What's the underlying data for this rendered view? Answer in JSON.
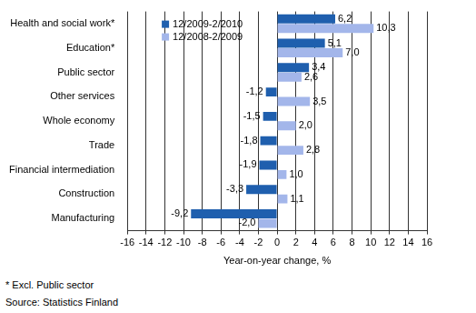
{
  "chart_data": {
    "type": "bar",
    "orientation": "horizontal",
    "categories": [
      "Health and social work*",
      "Education*",
      "Public sector",
      "Other services",
      "Whole economy",
      "Trade",
      "Financial intermediation",
      "Construction",
      "Manufacturing"
    ],
    "series": [
      {
        "name": "12/2009-2/2010",
        "color": "#1f5fae",
        "values": [
          6.2,
          5.1,
          3.4,
          -1.2,
          -1.5,
          -1.8,
          -1.9,
          -3.3,
          -9.2
        ],
        "value_labels": [
          "6,2",
          "5,1",
          "3,4",
          "-1,2",
          "-1,5",
          "-1,8",
          "-1,9",
          "-3,3",
          "-9,2"
        ]
      },
      {
        "name": "12/2008-2/2009",
        "color": "#a3b6ea",
        "values": [
          10.3,
          7.0,
          2.6,
          3.5,
          2.0,
          2.8,
          1.0,
          1.1,
          -2.0
        ],
        "value_labels": [
          "10,3",
          "7,0",
          "2,6",
          "3,5",
          "2,0",
          "2,8",
          "1,0",
          "1,1",
          "-2,0"
        ]
      }
    ],
    "x_label": "Year-on-year change, %",
    "xlim": [
      -16,
      16
    ],
    "xticks": [
      -16,
      -14,
      -12,
      -10,
      -8,
      -6,
      -4,
      -2,
      0,
      2,
      4,
      6,
      8,
      10,
      12,
      14,
      16
    ],
    "grid": true,
    "legend": "upper left",
    "data_labels": true,
    "annotations": [
      "* Excl. Public sector",
      "Source: Statistics Finland"
    ]
  }
}
